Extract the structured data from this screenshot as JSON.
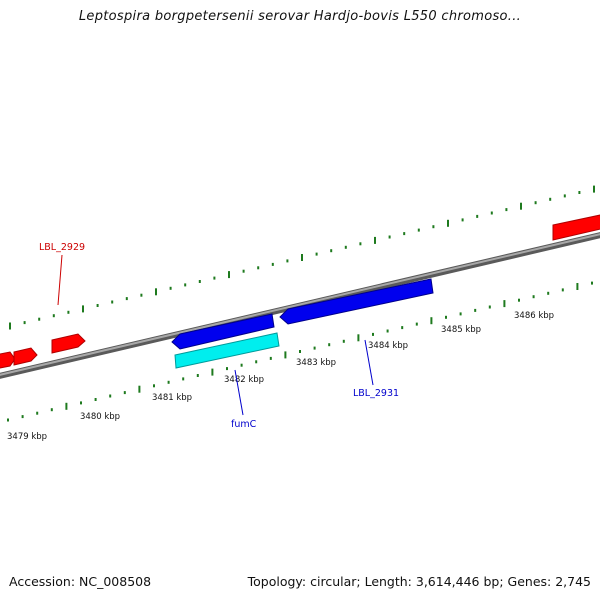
{
  "title": "Leptospira borgpetersenii serovar Hardjo-bovis L550 chromoso...",
  "footer": {
    "accession": "Accession: NC_008508",
    "summary": "Topology: circular; Length: 3,614,446 bp; Genes: 2,745"
  },
  "colors": {
    "backbone": "#808080",
    "tick": "#1e7a1e",
    "gene_red": "#ff0000",
    "gene_blue": "#0000ee",
    "gene_cyan": "#00eeee",
    "label_red": "#cc0000",
    "label_blue": "#0000cc"
  },
  "scale": {
    "unit": "kbp",
    "labels": [
      "3479 kbp",
      "3480 kbp",
      "3481 kbp",
      "3482 kbp",
      "3483 kbp",
      "3484 kbp",
      "3485 kbp",
      "3486 kbp"
    ]
  },
  "gene_labels": {
    "lbl_2929": "LBL_2929",
    "fumc": "fumC",
    "lbl_2931": "LBL_2931"
  }
}
